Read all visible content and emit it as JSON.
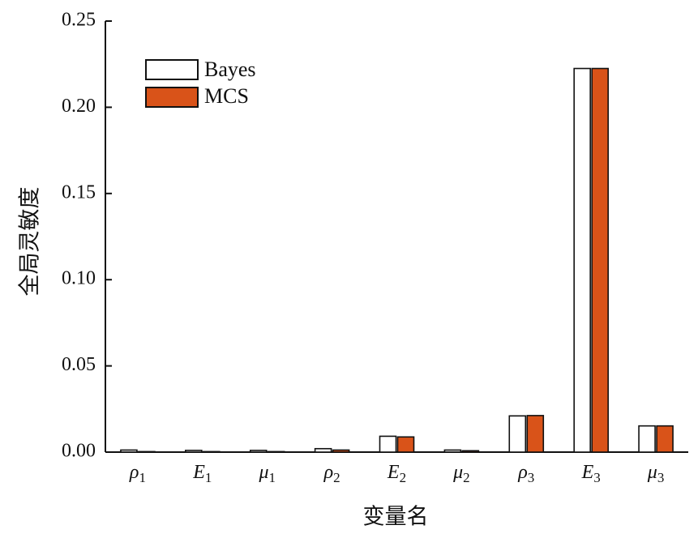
{
  "chart_data": {
    "type": "bar",
    "xlabel": "变量名",
    "ylabel": "全局灵敏度",
    "ylim": [
      0,
      0.25
    ],
    "yticks": [
      "0.00",
      "0.05",
      "0.10",
      "0.15",
      "0.20",
      "0.25"
    ],
    "categories": [
      {
        "symbol": "ρ",
        "sub": "1"
      },
      {
        "symbol": "E",
        "sub": "1"
      },
      {
        "symbol": "μ",
        "sub": "1"
      },
      {
        "symbol": "ρ",
        "sub": "2"
      },
      {
        "symbol": "E",
        "sub": "2"
      },
      {
        "symbol": "μ",
        "sub": "2"
      },
      {
        "symbol": "ρ",
        "sub": "3"
      },
      {
        "symbol": "E",
        "sub": "3"
      },
      {
        "symbol": "μ",
        "sub": "3"
      }
    ],
    "series": [
      {
        "name": "Bayes",
        "color": "#ffffff",
        "values": [
          0.0012,
          0.001,
          0.001,
          0.002,
          0.0092,
          0.0012,
          0.021,
          0.2225,
          0.0152
        ]
      },
      {
        "name": "MCS",
        "color": "#d95319",
        "values": [
          0.0003,
          0.0003,
          0.0003,
          0.0012,
          0.0088,
          0.0008,
          0.0212,
          0.2225,
          0.0152
        ]
      }
    ],
    "legend_position": "top-left",
    "grid": false
  }
}
